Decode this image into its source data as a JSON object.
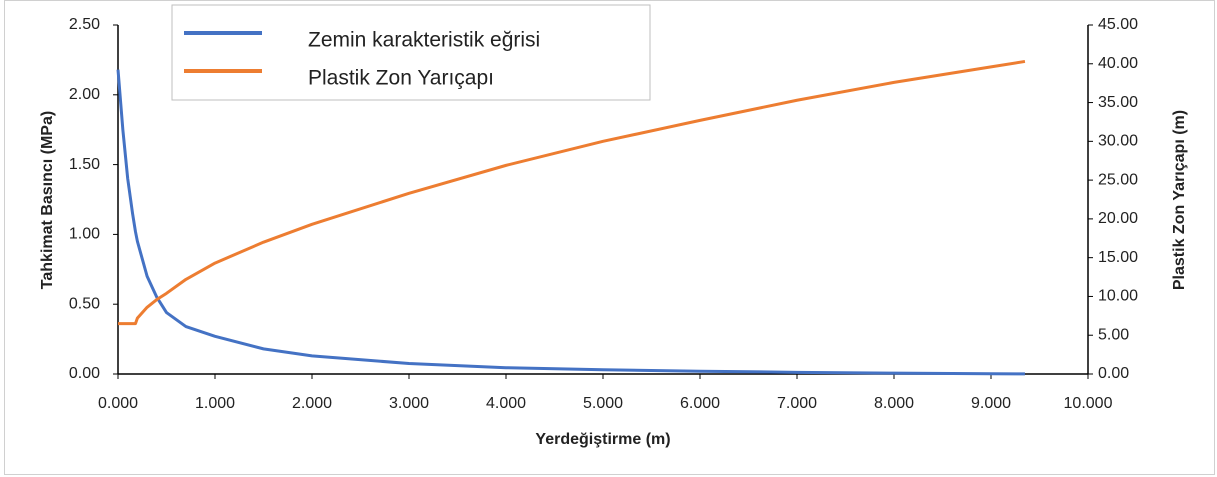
{
  "chart_data": {
    "type": "line",
    "xlabel": "Yerdeğiştirme (m)",
    "ylabel": "Tahkimat Basıncı (MPa)",
    "y2label": "Plastik Zon Yarıçapı (m)",
    "x": [
      0,
      0.05,
      0.1,
      0.15,
      0.18,
      0.2,
      0.3,
      0.4,
      0.5,
      0.7,
      1,
      1.5,
      2,
      3,
      4,
      5,
      6,
      7,
      8,
      9,
      9.35
    ],
    "series": [
      {
        "name": "Zemin karakteristik eğrisi",
        "color": "#4472c4",
        "axis": "y",
        "values": [
          2.18,
          1.75,
          1.4,
          1.15,
          1.02,
          0.95,
          0.7,
          0.55,
          0.44,
          0.34,
          0.27,
          0.18,
          0.13,
          0.075,
          0.045,
          0.03,
          0.02,
          0.012,
          0.006,
          0.002,
          0.001
        ]
      },
      {
        "name": "Plastik Zon Yarıçapı",
        "color": "#ed7d31",
        "axis": "y2",
        "values": [
          6.5,
          6.5,
          6.5,
          6.5,
          6.5,
          7.2,
          8.6,
          9.6,
          10.4,
          12.2,
          14.3,
          17,
          19.3,
          23.3,
          26.9,
          30,
          32.7,
          35.3,
          37.6,
          39.6,
          40.3
        ]
      }
    ],
    "xlim": [
      0,
      10
    ],
    "xticks": [
      {
        "value": 0,
        "label": "0.000"
      },
      {
        "value": 1,
        "label": "1.000"
      },
      {
        "value": 2,
        "label": "2.000"
      },
      {
        "value": 3,
        "label": "3.000"
      },
      {
        "value": 4,
        "label": "4.000"
      },
      {
        "value": 5,
        "label": "5.000"
      },
      {
        "value": 6,
        "label": "6.000"
      },
      {
        "value": 7,
        "label": "7.000"
      },
      {
        "value": 8,
        "label": "8.000"
      },
      {
        "value": 9,
        "label": "9.000"
      },
      {
        "value": 10,
        "label": "10.000"
      }
    ],
    "ylim": [
      0,
      2.5
    ],
    "yticks": [
      {
        "value": 0,
        "label": "0.00"
      },
      {
        "value": 0.5,
        "label": "0.50"
      },
      {
        "value": 1,
        "label": "1.00"
      },
      {
        "value": 1.5,
        "label": "1.50"
      },
      {
        "value": 2,
        "label": "2.00"
      },
      {
        "value": 2.5,
        "label": "2.50"
      }
    ],
    "y2lim": [
      0,
      45
    ],
    "y2ticks": [
      {
        "value": 0,
        "label": "0.00"
      },
      {
        "value": 5,
        "label": "5.00"
      },
      {
        "value": 10,
        "label": "10.00"
      },
      {
        "value": 15,
        "label": "15.00"
      },
      {
        "value": 20,
        "label": "20.00"
      },
      {
        "value": 25,
        "label": "25.00"
      },
      {
        "value": 30,
        "label": "30.00"
      },
      {
        "value": 35,
        "label": "35.00"
      },
      {
        "value": 40,
        "label": "40.00"
      },
      {
        "value": 45,
        "label": "45.00"
      }
    ],
    "grid": false
  }
}
